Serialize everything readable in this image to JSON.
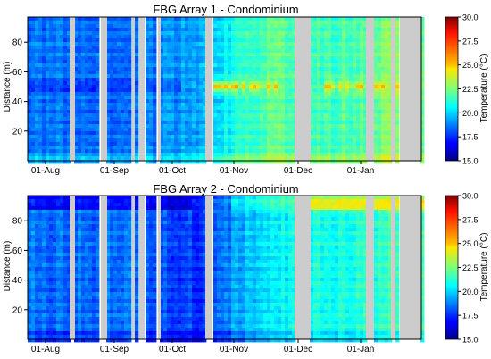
{
  "chart_data": [
    {
      "type": "heatmap",
      "title": "FBG Array 1 - Condominium",
      "xlabel": "",
      "ylabel": "Distance (m)",
      "x_ticks": [
        "01-Aug",
        "01-Sep",
        "01-Oct",
        "01-Nov",
        "01-Dec",
        "01-Jan"
      ],
      "y_ticks": [
        20,
        40,
        60,
        80
      ],
      "ylim": [
        0,
        97
      ],
      "colorbar": {
        "label": "Temperature (°C)",
        "range": [
          15.0,
          30.0
        ],
        "ticks": [
          "30.0",
          "27.5",
          "25.0",
          "22.5",
          "20.0",
          "17.5",
          "15.0"
        ],
        "colormap": "jet"
      },
      "approx_temperature_c": {
        "Aug": 18.5,
        "Sep": 18.5,
        "Oct": 19.5,
        "Nov": 22.0,
        "Dec": 21.5,
        "Jan": 22.5
      },
      "warm_band_m": [
        44,
        56
      ],
      "warm_band_peak_c": {
        "Nov": 24.5,
        "Dec": 25.0
      },
      "missing_color": "#cccccc"
    },
    {
      "type": "heatmap",
      "title": "FBG Array 2 - Condominium",
      "xlabel": "",
      "ylabel": "Distance (m)",
      "x_ticks": [
        "01-Aug",
        "01-Sep",
        "01-Oct",
        "01-Nov",
        "01-Dec",
        "01-Jan"
      ],
      "y_ticks": [
        20,
        40,
        60,
        80
      ],
      "ylim": [
        0,
        97
      ],
      "colorbar": {
        "label": "Temperature (°C)",
        "range": [
          15.0,
          30.0
        ],
        "ticks": [
          "30.0",
          "27.5",
          "25.0",
          "22.5",
          "20.0",
          "17.5",
          "15.0"
        ],
        "colormap": "jet"
      },
      "approx_temperature_c": {
        "Aug": 18.5,
        "Sep": 18.5,
        "Oct": 17.5,
        "Nov": 20.5,
        "Dec": 21.0,
        "Jan": 21.5
      },
      "top_band_m": [
        88,
        97
      ],
      "top_band_peak_c": {
        "Dec": 25.0,
        "Jan": 24.0
      },
      "missing_color": "#cccccc"
    }
  ]
}
